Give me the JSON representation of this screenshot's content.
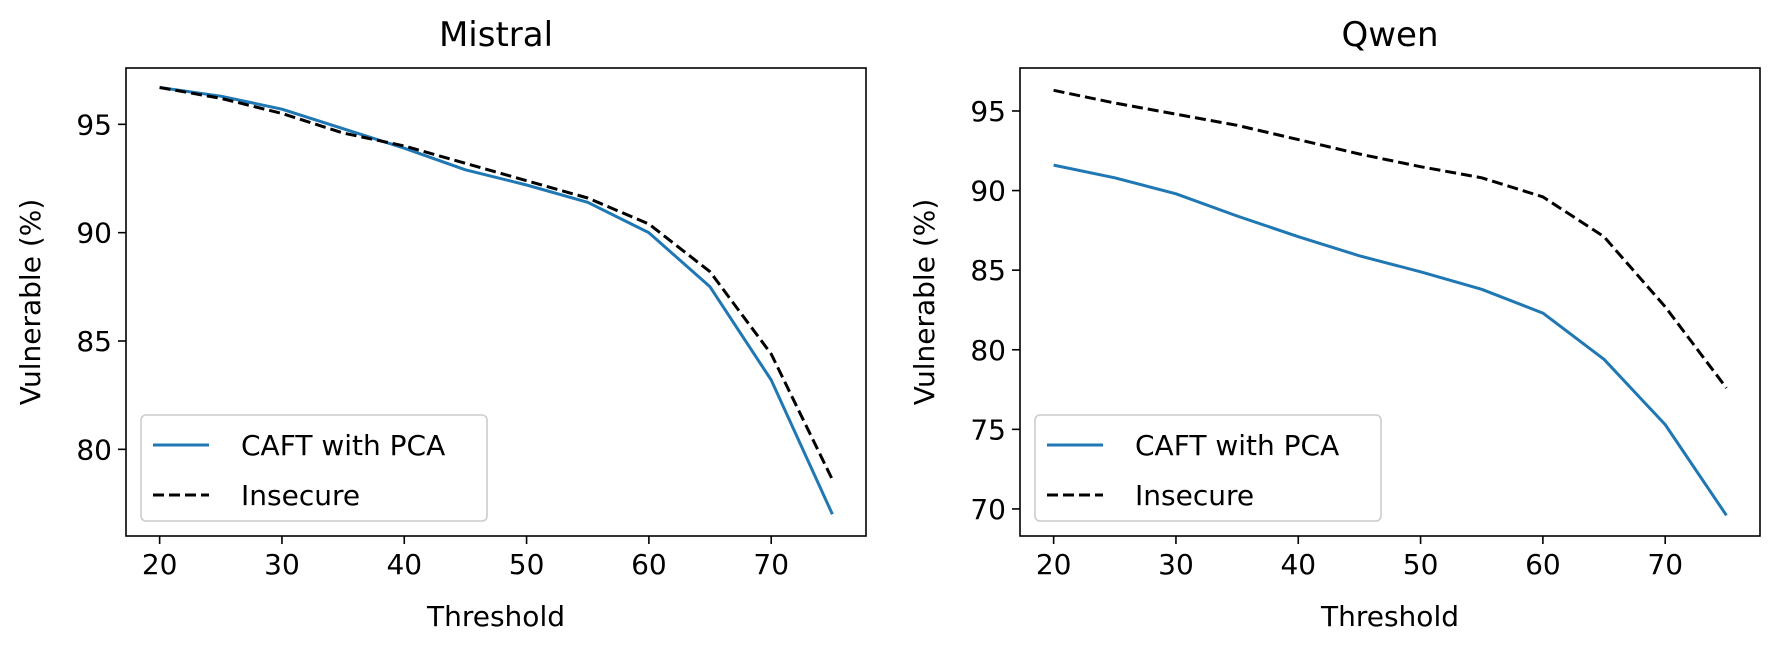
{
  "chart_data": [
    {
      "type": "line",
      "title": "Mistral",
      "xlabel": "Threshold",
      "ylabel": "Vulnerable (%)",
      "xlim": [
        17.25,
        77.75
      ],
      "ylim": [
        76.0,
        97.6
      ],
      "xticks": [
        20,
        30,
        40,
        50,
        60,
        70
      ],
      "xtick_labels": [
        "20",
        "30",
        "40",
        "50",
        "60",
        "70"
      ],
      "yticks": [
        80,
        85,
        90,
        95
      ],
      "ytick_labels": [
        "80",
        "85",
        "90",
        "95"
      ],
      "legend_position": "lower-left",
      "x": [
        20,
        25,
        30,
        35,
        40,
        45,
        50,
        55,
        60,
        65,
        70,
        75
      ],
      "series": [
        {
          "name": "CAFT with PCA",
          "style": "solid",
          "color": "#1f77b4",
          "values": [
            96.7,
            96.3,
            95.7,
            94.8,
            93.9,
            92.9,
            92.2,
            91.4,
            90.0,
            87.5,
            83.2,
            77.0
          ]
        },
        {
          "name": "Insecure",
          "style": "dashed",
          "color": "#000000",
          "values": [
            96.7,
            96.2,
            95.5,
            94.6,
            94.0,
            93.2,
            92.4,
            91.6,
            90.4,
            88.2,
            84.4,
            78.6
          ]
        }
      ]
    },
    {
      "type": "line",
      "title": "Qwen",
      "xlabel": "Threshold",
      "ylabel": "Vulnerable (%)",
      "xlim": [
        17.25,
        77.75
      ],
      "ylim": [
        68.3,
        97.7
      ],
      "xticks": [
        20,
        30,
        40,
        50,
        60,
        70
      ],
      "xtick_labels": [
        "20",
        "30",
        "40",
        "50",
        "60",
        "70"
      ],
      "yticks": [
        70,
        75,
        80,
        85,
        90,
        95
      ],
      "ytick_labels": [
        "70",
        "75",
        "80",
        "85",
        "90",
        "95"
      ],
      "legend_position": "lower-left",
      "x": [
        20,
        25,
        30,
        35,
        40,
        45,
        50,
        55,
        60,
        65,
        70,
        75
      ],
      "series": [
        {
          "name": "CAFT with PCA",
          "style": "solid",
          "color": "#1f77b4",
          "values": [
            91.6,
            90.8,
            89.8,
            88.4,
            87.1,
            85.9,
            84.9,
            83.8,
            82.3,
            79.4,
            75.3,
            69.6
          ]
        },
        {
          "name": "Insecure",
          "style": "dashed",
          "color": "#000000",
          "values": [
            96.3,
            95.5,
            94.8,
            94.1,
            93.2,
            92.3,
            91.5,
            90.8,
            89.6,
            87.1,
            82.7,
            77.6
          ]
        }
      ]
    }
  ]
}
